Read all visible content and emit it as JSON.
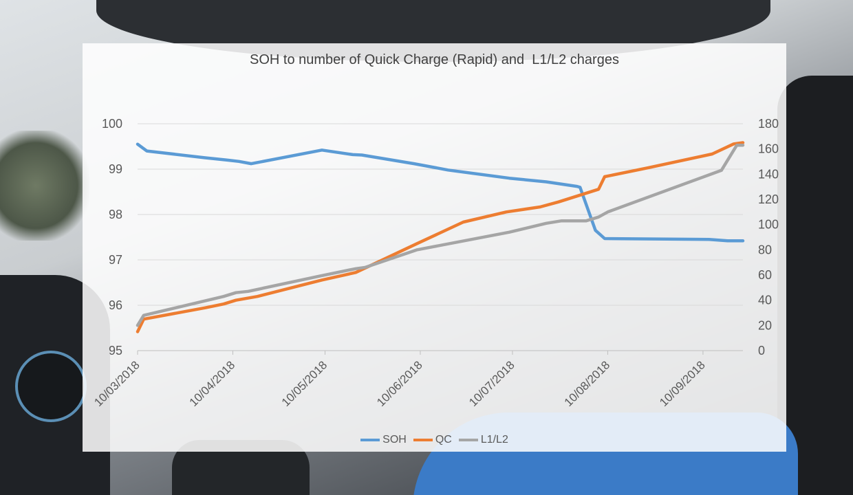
{
  "chart_data": {
    "type": "line",
    "title": "SOH to number of Quick Charge (Rapid) and  L1/L2 charges",
    "xlabel": "",
    "ylabel": "",
    "x_ticks": [
      "10/03/2018",
      "10/04/2018",
      "10/05/2018",
      "10/06/2018",
      "10/07/2018",
      "10/08/2018",
      "10/09/2018"
    ],
    "x_range": [
      "2018-03-10",
      "2018-09-23"
    ],
    "ylim_left": [
      95,
      100
    ],
    "yticks_left": [
      95,
      96,
      97,
      98,
      99,
      100
    ],
    "ylim_right": [
      0,
      180
    ],
    "yticks_right": [
      0,
      20,
      40,
      60,
      80,
      100,
      120,
      140,
      160,
      180
    ],
    "grid": true,
    "legend_position": "bottom",
    "series": [
      {
        "name": "SOH",
        "axis": "left",
        "color": "#5b9bd5",
        "points": [
          [
            "2018-03-10",
            99.55
          ],
          [
            "2018-03-13",
            99.4
          ],
          [
            "2018-04-01",
            99.25
          ],
          [
            "2018-04-08",
            99.2
          ],
          [
            "2018-04-12",
            99.17
          ],
          [
            "2018-04-16",
            99.12
          ],
          [
            "2018-05-09",
            99.42
          ],
          [
            "2018-05-19",
            99.32
          ],
          [
            "2018-05-22",
            99.31
          ],
          [
            "2018-06-08",
            99.12
          ],
          [
            "2018-06-19",
            98.98
          ],
          [
            "2018-07-09",
            98.8
          ],
          [
            "2018-07-21",
            98.72
          ],
          [
            "2018-07-31",
            98.62
          ],
          [
            "2018-08-01",
            98.6
          ],
          [
            "2018-08-06",
            97.65
          ],
          [
            "2018-08-09",
            97.47
          ],
          [
            "2018-09-12",
            97.45
          ],
          [
            "2018-09-18",
            97.42
          ],
          [
            "2018-09-23",
            97.42
          ]
        ]
      },
      {
        "name": "QC",
        "axis": "right",
        "color": "#ed7d31",
        "points": [
          [
            "2018-03-10",
            15
          ],
          [
            "2018-03-12",
            25
          ],
          [
            "2018-04-01",
            34
          ],
          [
            "2018-04-07",
            37
          ],
          [
            "2018-04-11",
            40
          ],
          [
            "2018-04-18",
            43
          ],
          [
            "2018-05-09",
            56
          ],
          [
            "2018-05-20",
            62
          ],
          [
            "2018-06-09",
            85
          ],
          [
            "2018-06-24",
            102
          ],
          [
            "2018-07-08",
            110
          ],
          [
            "2018-07-19",
            114
          ],
          [
            "2018-07-25",
            118
          ],
          [
            "2018-08-07",
            128
          ],
          [
            "2018-08-09",
            138
          ],
          [
            "2018-08-23",
            145
          ],
          [
            "2018-09-13",
            156
          ],
          [
            "2018-09-20",
            164
          ],
          [
            "2018-09-23",
            165
          ]
        ]
      },
      {
        "name": "L1/L2",
        "axis": "right",
        "color": "#a5a5a5",
        "points": [
          [
            "2018-03-10",
            20
          ],
          [
            "2018-03-12",
            28
          ],
          [
            "2018-04-07",
            43
          ],
          [
            "2018-04-11",
            46
          ],
          [
            "2018-04-15",
            47
          ],
          [
            "2018-05-08",
            59
          ],
          [
            "2018-05-20",
            65
          ],
          [
            "2018-05-23",
            66
          ],
          [
            "2018-06-09",
            80
          ],
          [
            "2018-07-09",
            94
          ],
          [
            "2018-07-21",
            101
          ],
          [
            "2018-07-26",
            103
          ],
          [
            "2018-08-03",
            103
          ],
          [
            "2018-08-07",
            106
          ],
          [
            "2018-08-10",
            110
          ],
          [
            "2018-09-16",
            143
          ],
          [
            "2018-09-21",
            163
          ],
          [
            "2018-09-23",
            163
          ]
        ]
      }
    ]
  }
}
